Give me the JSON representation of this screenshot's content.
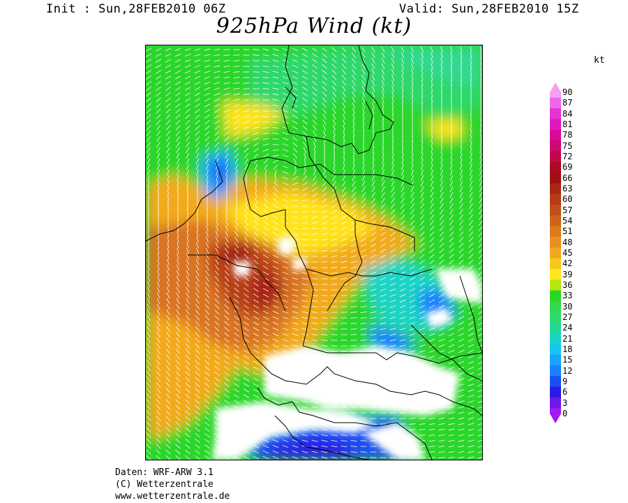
{
  "header": {
    "init": "Init : Sun,28FEB2010 06Z",
    "valid": "Valid: Sun,28FEB2010 15Z",
    "title": "925hPa Wind (kt)"
  },
  "legend": {
    "unit": "kt",
    "levels": [
      {
        "v": "90",
        "color": "#f4a0f4"
      },
      {
        "v": "87",
        "color": "#ee66ee"
      },
      {
        "v": "84",
        "color": "#e633d8"
      },
      {
        "v": "81",
        "color": "#dd1ac0"
      },
      {
        "v": "78",
        "color": "#d80a9a"
      },
      {
        "v": "75",
        "color": "#cc0a70"
      },
      {
        "v": "72",
        "color": "#c00a48"
      },
      {
        "v": "69",
        "color": "#ac0a24"
      },
      {
        "v": "66",
        "color": "#a01010"
      },
      {
        "v": "63",
        "color": "#a82814"
      },
      {
        "v": "60",
        "color": "#b43c14"
      },
      {
        "v": "57",
        "color": "#c04e18"
      },
      {
        "v": "54",
        "color": "#cc641a"
      },
      {
        "v": "51",
        "color": "#dc7a1e"
      },
      {
        "v": "48",
        "color": "#e89022"
      },
      {
        "v": "45",
        "color": "#f0a81e"
      },
      {
        "v": "42",
        "color": "#f8c81a"
      },
      {
        "v": "39",
        "color": "#ffe620"
      },
      {
        "v": "36",
        "color": "#b8e614"
      },
      {
        "v": "33",
        "color": "#28d628"
      },
      {
        "v": "30",
        "color": "#34d84a"
      },
      {
        "v": "27",
        "color": "#30d870"
      },
      {
        "v": "24",
        "color": "#26d898"
      },
      {
        "v": "21",
        "color": "#1ad4c4"
      },
      {
        "v": "18",
        "color": "#1ac4ec"
      },
      {
        "v": "15",
        "color": "#1aa4ff"
      },
      {
        "v": "12",
        "color": "#1a80ff"
      },
      {
        "v": "9",
        "color": "#1a50f0"
      },
      {
        "v": "6",
        "color": "#2a1ae8"
      },
      {
        "v": "3",
        "color": "#6a1ae8"
      },
      {
        "v": "0",
        "color": "#a41af0"
      }
    ]
  },
  "footer": {
    "line1": "Daten: WRF-ARW 3.1",
    "line2": "(C) Wetterzentrale",
    "line3": "www.wetterzentrale.de"
  }
}
